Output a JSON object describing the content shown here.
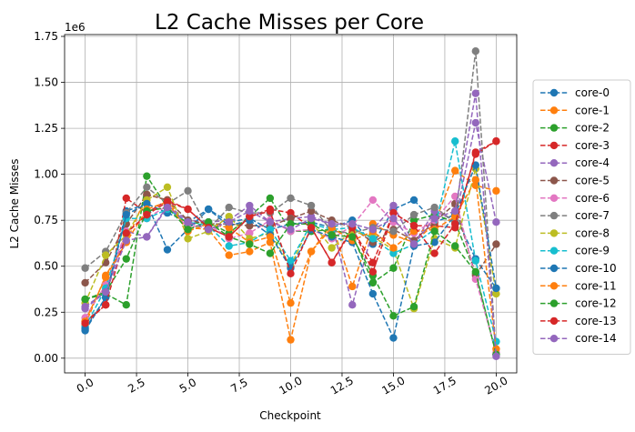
{
  "chart_data": {
    "type": "line",
    "title": "L2 Cache Misses per Core",
    "xlabel": "Checkpoint",
    "ylabel": "L2 Cache Misses",
    "y_offset_label": "1e6",
    "x": [
      0,
      1,
      2,
      3,
      4,
      5,
      6,
      7,
      8,
      9,
      10,
      11,
      12,
      13,
      14,
      15,
      16,
      17,
      18,
      19,
      20
    ],
    "xlim": [
      -1,
      21
    ],
    "ylim": [
      -0.08,
      1.76
    ],
    "x_ticks": [
      "0.0",
      "2.5",
      "5.0",
      "7.5",
      "10.0",
      "12.5",
      "15.0",
      "17.5",
      "20.0"
    ],
    "x_tick_values": [
      0,
      2.5,
      5,
      7.5,
      10,
      12.5,
      15,
      17.5,
      20
    ],
    "y_ticks": [
      "0.00",
      "0.25",
      "0.50",
      "0.75",
      "1.00",
      "1.25",
      "1.50",
      "1.75"
    ],
    "y_tick_values": [
      0,
      0.25,
      0.5,
      0.75,
      1.0,
      1.25,
      1.5,
      1.75
    ],
    "y_unit_multiplier": 1000000,
    "grid": true,
    "legend_placement": "outside-right",
    "line_style": "dashed",
    "marker": "circle",
    "series": [
      {
        "name": "core-0",
        "color": "#1f77b4",
        "values": [
          0.15,
          0.33,
          0.8,
          0.84,
          0.79,
          0.74,
          0.81,
          0.74,
          0.76,
          0.7,
          0.73,
          0.74,
          0.71,
          0.75,
          0.62,
          0.81,
          0.86,
          0.74,
          0.78,
          0.54,
          0.38
        ]
      },
      {
        "name": "core-1",
        "color": "#ff7f0e",
        "values": [
          0.18,
          0.45,
          0.63,
          0.89,
          0.86,
          0.71,
          0.7,
          0.56,
          0.58,
          0.63,
          0.1,
          0.58,
          0.73,
          0.39,
          0.73,
          0.67,
          0.63,
          0.73,
          1.02,
          0.94,
          0.91
        ]
      },
      {
        "name": "core-2",
        "color": "#2ca02c",
        "values": [
          0.32,
          0.35,
          0.29,
          0.99,
          0.82,
          0.73,
          0.74,
          0.68,
          0.77,
          0.87,
          0.69,
          0.69,
          0.7,
          0.67,
          0.41,
          0.49,
          0.75,
          0.78,
          0.74,
          0.46,
          0.02
        ]
      },
      {
        "name": "core-3",
        "color": "#d62728",
        "values": [
          0.2,
          0.29,
          0.87,
          0.79,
          0.86,
          0.81,
          0.71,
          0.66,
          0.77,
          0.81,
          0.79,
          0.71,
          0.52,
          0.7,
          0.52,
          0.79,
          0.72,
          0.72,
          0.71,
          1.12,
          1.18
        ]
      },
      {
        "name": "core-4",
        "color": "#9467bd",
        "values": [
          0.27,
          0.36,
          0.69,
          0.66,
          0.83,
          0.75,
          0.74,
          0.75,
          0.83,
          0.74,
          0.76,
          0.77,
          0.73,
          0.29,
          0.7,
          0.83,
          0.62,
          0.8,
          0.75,
          1.28,
          0.74
        ]
      },
      {
        "name": "core-5",
        "color": "#8c564b",
        "values": [
          0.41,
          0.52,
          0.73,
          0.89,
          0.86,
          0.75,
          0.73,
          0.73,
          0.72,
          0.72,
          0.76,
          0.8,
          0.75,
          0.71,
          0.63,
          0.7,
          0.64,
          0.74,
          0.84,
          0.45,
          0.62
        ]
      },
      {
        "name": "core-6",
        "color": "#e377c2",
        "values": [
          0.22,
          0.4,
          0.69,
          0.76,
          0.83,
          0.71,
          0.73,
          0.65,
          0.68,
          0.75,
          0.69,
          0.7,
          0.65,
          0.72,
          0.86,
          0.74,
          0.68,
          0.75,
          0.88,
          0.43,
          0.03
        ]
      },
      {
        "name": "core-7",
        "color": "#7f7f7f",
        "values": [
          0.49,
          0.58,
          0.79,
          0.93,
          0.84,
          0.91,
          0.7,
          0.82,
          0.79,
          0.79,
          0.87,
          0.83,
          0.69,
          0.68,
          0.71,
          0.69,
          0.78,
          0.82,
          0.74,
          1.67,
          0.02
        ]
      },
      {
        "name": "core-8",
        "color": "#bcbd22",
        "values": [
          0.3,
          0.56,
          0.67,
          0.86,
          0.93,
          0.65,
          0.69,
          0.77,
          0.65,
          0.68,
          0.5,
          0.74,
          0.6,
          0.69,
          0.66,
          0.59,
          0.27,
          0.65,
          0.6,
          1.03,
          0.35
        ]
      },
      {
        "name": "core-9",
        "color": "#17becf",
        "values": [
          0.17,
          0.38,
          0.76,
          0.76,
          0.81,
          0.74,
          0.72,
          0.61,
          0.63,
          0.7,
          0.53,
          0.73,
          0.7,
          0.71,
          0.65,
          0.57,
          0.62,
          0.7,
          1.18,
          0.53,
          0.09
        ]
      },
      {
        "name": "core-10",
        "color": "#1f77b4",
        "values": [
          0.16,
          0.33,
          0.78,
          0.84,
          0.59,
          0.7,
          0.81,
          0.72,
          0.75,
          0.67,
          0.49,
          0.7,
          0.66,
          0.63,
          0.35,
          0.11,
          0.61,
          0.63,
          0.78,
          1.05,
          0.38
        ]
      },
      {
        "name": "core-11",
        "color": "#ff7f0e",
        "values": [
          0.2,
          0.44,
          0.63,
          0.81,
          0.85,
          0.69,
          0.73,
          0.71,
          0.63,
          0.66,
          0.3,
          0.58,
          0.71,
          0.64,
          0.69,
          0.6,
          0.69,
          0.7,
          0.77,
          0.97,
          0.05
        ]
      },
      {
        "name": "core-12",
        "color": "#2ca02c",
        "values": [
          0.32,
          0.36,
          0.54,
          0.8,
          0.82,
          0.7,
          0.74,
          0.66,
          0.62,
          0.57,
          0.73,
          0.73,
          0.67,
          0.66,
          0.45,
          0.23,
          0.28,
          0.69,
          0.61,
          0.47,
          0.02
        ]
      },
      {
        "name": "core-13",
        "color": "#d62728",
        "values": [
          0.19,
          0.29,
          0.68,
          0.78,
          0.85,
          0.81,
          0.71,
          0.66,
          0.77,
          0.8,
          0.46,
          0.71,
          0.52,
          0.71,
          0.47,
          0.79,
          0.72,
          0.57,
          0.73,
          1.11,
          1.18
        ]
      },
      {
        "name": "core-14",
        "color": "#9467bd",
        "values": [
          0.28,
          0.36,
          0.64,
          0.66,
          0.82,
          0.74,
          0.7,
          0.74,
          0.8,
          0.74,
          0.7,
          0.76,
          0.73,
          0.73,
          0.7,
          0.76,
          0.62,
          0.76,
          0.8,
          1.44,
          0.01
        ]
      }
    ]
  }
}
